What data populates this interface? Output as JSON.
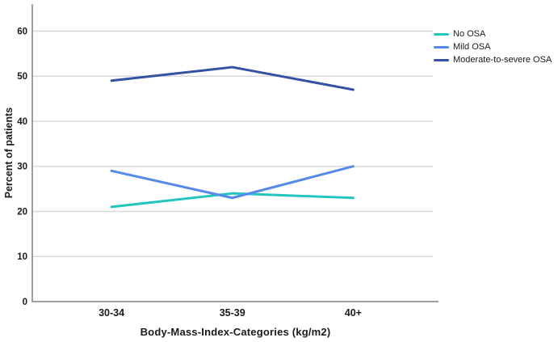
{
  "chart_data": {
    "type": "line",
    "title": "",
    "xlabel": "Body-Mass-Index-Categories (kg/m2)",
    "ylabel": "Percent of patients",
    "categories": [
      "30-34",
      "35-39",
      "40+"
    ],
    "yticks": [
      0,
      10,
      20,
      30,
      40,
      50,
      60
    ],
    "ylim": [
      0,
      66
    ],
    "grid": "horizontal",
    "legend_position": "top-right",
    "series": [
      {
        "name": "No OSA",
        "color": "#23C5BE",
        "values": [
          21,
          24,
          23
        ]
      },
      {
        "name": "Mild OSA",
        "color": "#568AE8",
        "values": [
          29,
          23,
          30
        ]
      },
      {
        "name": "Moderate-to-severe OSA",
        "color": "#3352A3",
        "values": [
          49,
          52,
          47
        ]
      }
    ]
  },
  "colors": {
    "gridline": "#d8d8d8",
    "axis": "#9e9e9e",
    "text": "#1a1a1a"
  }
}
